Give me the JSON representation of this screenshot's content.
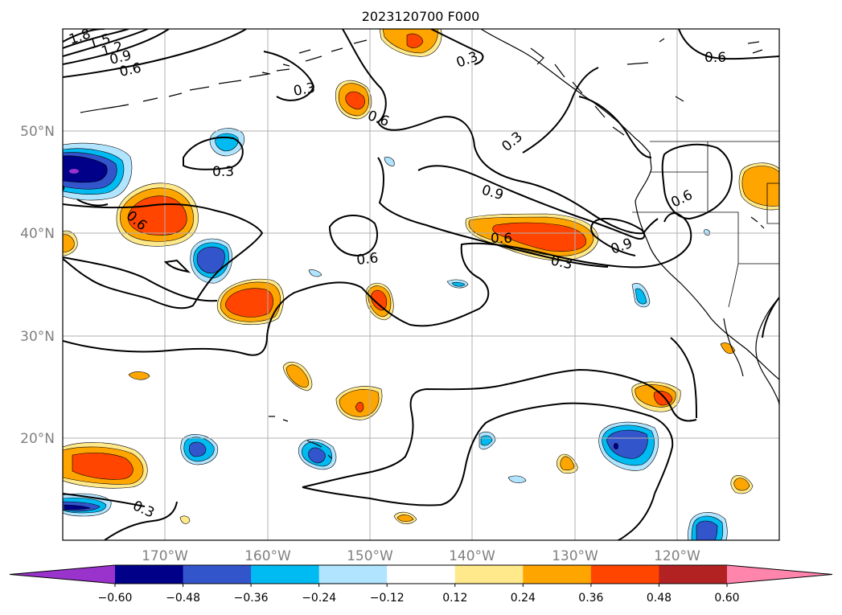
{
  "title": "2023120700 F000",
  "map": {
    "lat_labels": [
      "50°N",
      "40°N",
      "30°N",
      "20°N"
    ],
    "lon_labels": [
      "170°W",
      "160°W",
      "150°W",
      "140°W",
      "130°W",
      "120°W"
    ]
  },
  "colorbar": {
    "tick_labels": [
      "−0.60",
      "−0.48",
      "−0.36",
      "−0.24",
      "−0.12",
      "0.12",
      "0.24",
      "0.36",
      "0.48",
      "0.60"
    ],
    "under_color": "#9933cc",
    "colors": [
      "#000088",
      "#3355cc",
      "#00bbf2",
      "#b0e4ff",
      "#ffffff",
      "#ffe98a",
      "#ffa500",
      "#ff4500",
      "#b22222"
    ],
    "over_color": "#ff85ad"
  },
  "contour_labels": [
    "1.8",
    "1.5",
    "1.2",
    "0.9",
    "0.6",
    "0.3",
    "0.3",
    "0.3",
    "0.3",
    "0.6",
    "0.6",
    "0.6",
    "0.9",
    "0.6",
    "0.6",
    "0.6",
    "0.9",
    "0.6",
    "0.3",
    "0.3"
  ]
}
